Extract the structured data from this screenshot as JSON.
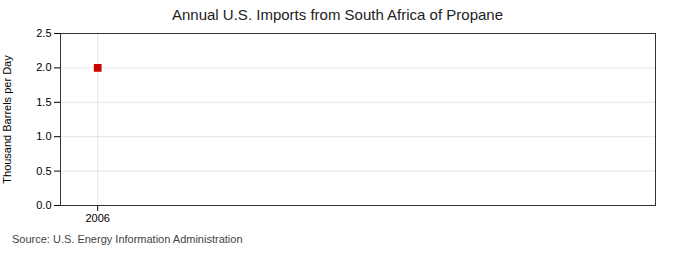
{
  "chart_data": {
    "type": "scatter",
    "title": "Annual U.S. Imports from South Africa of Propane",
    "ylabel": "Thousand Barrels per Day",
    "annotations": [
      "Source: U.S. Energy Information Administration"
    ],
    "x": [
      2006
    ],
    "values": [
      2.0
    ],
    "color": "#cc0000",
    "marker": "square",
    "xlim": [
      2005.5,
      2013.5
    ],
    "xticks": [
      2006
    ],
    "ylim": [
      0.0,
      2.5
    ],
    "yticks": [
      {
        "value": 0,
        "label": "0.0"
      },
      0.5,
      {
        "value": 1,
        "label": "1.0"
      },
      1.5,
      {
        "value": 2,
        "label": "2.0"
      },
      2.5
    ],
    "grid": true
  }
}
